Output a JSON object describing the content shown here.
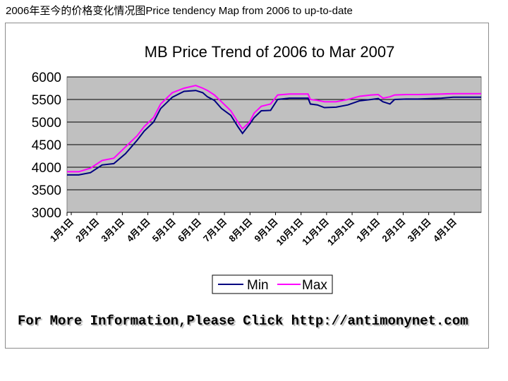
{
  "page_caption": "2006年至今的价格变化情况图Price tendency Map from 2006 to up-to-date",
  "footer_text": "For More Information,Please Click http://antimonynet.com",
  "colors": {
    "plot_bg": "#c0c0c0",
    "min_line": "#000080",
    "max_line": "#ff00ff",
    "grid": "#000000"
  },
  "chart_data": {
    "type": "line",
    "title": "MB Price Trend of 2006 to Mar 2007",
    "xlabel": "",
    "ylabel": "",
    "ylim": [
      3000,
      6000
    ],
    "yticks": [
      3000,
      3500,
      4000,
      4500,
      5000,
      5500,
      6000
    ],
    "grid": true,
    "legend_position": "bottom-center",
    "categories": [
      "1月1日",
      "2月1日",
      "3月1日",
      "4月1日",
      "5月1日",
      "6月1日",
      "7月1日",
      "8月1日",
      "9月1日",
      "10月1日",
      "11月1日",
      "12月1日",
      "1月1日",
      "2月1日",
      "3月1日",
      "4月1日"
    ],
    "series": [
      {
        "name": "Min",
        "color": "#000080",
        "points": [
          [
            0,
            3830
          ],
          [
            0.5,
            3830
          ],
          [
            1,
            3880
          ],
          [
            1.5,
            4050
          ],
          [
            2,
            4080
          ],
          [
            2.5,
            4300
          ],
          [
            3,
            4600
          ],
          [
            3.3,
            4800
          ],
          [
            3.7,
            5000
          ],
          [
            4,
            5300
          ],
          [
            4.5,
            5550
          ],
          [
            5,
            5680
          ],
          [
            5.5,
            5700
          ],
          [
            5.8,
            5650
          ],
          [
            6,
            5560
          ],
          [
            6.3,
            5480
          ],
          [
            6.6,
            5300
          ],
          [
            7,
            5150
          ],
          [
            7.3,
            4900
          ],
          [
            7.5,
            4750
          ],
          [
            7.8,
            4950
          ],
          [
            8,
            5100
          ],
          [
            8.3,
            5250
          ],
          [
            8.7,
            5260
          ],
          [
            9,
            5500
          ],
          [
            9.5,
            5530
          ],
          [
            10,
            5530
          ],
          [
            10.3,
            5530
          ],
          [
            10.4,
            5400
          ],
          [
            10.7,
            5380
          ],
          [
            11,
            5320
          ],
          [
            11.5,
            5330
          ],
          [
            12,
            5380
          ],
          [
            12.5,
            5470
          ],
          [
            13,
            5500
          ],
          [
            13.3,
            5520
          ],
          [
            13.5,
            5450
          ],
          [
            13.8,
            5400
          ],
          [
            14,
            5500
          ],
          [
            14.5,
            5510
          ],
          [
            15,
            5510
          ],
          [
            15.5,
            5520
          ],
          [
            16,
            5530
          ],
          [
            16.5,
            5550
          ],
          [
            17,
            5550
          ],
          [
            17.7,
            5550
          ]
        ]
      },
      {
        "name": "Max",
        "color": "#ff00ff",
        "points": [
          [
            0,
            3900
          ],
          [
            0.5,
            3900
          ],
          [
            1,
            3980
          ],
          [
            1.5,
            4150
          ],
          [
            2,
            4200
          ],
          [
            2.5,
            4450
          ],
          [
            3,
            4700
          ],
          [
            3.3,
            4900
          ],
          [
            3.7,
            5100
          ],
          [
            4,
            5400
          ],
          [
            4.5,
            5650
          ],
          [
            5,
            5750
          ],
          [
            5.5,
            5810
          ],
          [
            5.8,
            5750
          ],
          [
            6,
            5700
          ],
          [
            6.3,
            5600
          ],
          [
            6.6,
            5450
          ],
          [
            7,
            5250
          ],
          [
            7.3,
            5000
          ],
          [
            7.5,
            4850
          ],
          [
            7.8,
            5000
          ],
          [
            8,
            5200
          ],
          [
            8.3,
            5350
          ],
          [
            8.7,
            5400
          ],
          [
            9,
            5600
          ],
          [
            9.5,
            5620
          ],
          [
            10,
            5620
          ],
          [
            10.3,
            5620
          ],
          [
            10.4,
            5500
          ],
          [
            10.7,
            5480
          ],
          [
            11,
            5450
          ],
          [
            11.5,
            5450
          ],
          [
            12,
            5500
          ],
          [
            12.5,
            5570
          ],
          [
            13,
            5600
          ],
          [
            13.3,
            5610
          ],
          [
            13.5,
            5530
          ],
          [
            13.8,
            5560
          ],
          [
            14,
            5600
          ],
          [
            14.5,
            5610
          ],
          [
            15,
            5610
          ],
          [
            15.5,
            5615
          ],
          [
            16,
            5620
          ],
          [
            16.5,
            5630
          ],
          [
            17,
            5630
          ],
          [
            17.7,
            5630
          ]
        ]
      }
    ]
  }
}
